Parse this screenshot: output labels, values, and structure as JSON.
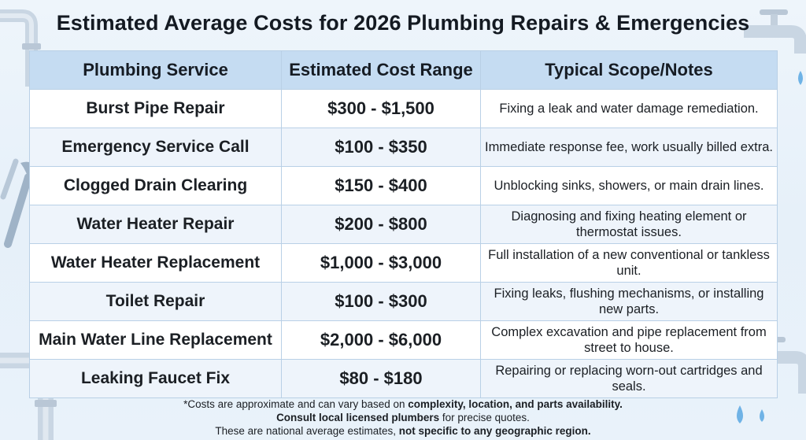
{
  "title": "Estimated Average Costs for 2026 Plumbing Repairs & Emergencies",
  "headers": [
    "Plumbing Service",
    "Estimated Cost Range",
    "Typical Scope/Notes"
  ],
  "rows": [
    {
      "service": "Burst Pipe Repair",
      "cost": "$300 - $1,500",
      "notes": "Fixing a leak and water damage remediation."
    },
    {
      "service": "Emergency Service Call",
      "cost": "$100 - $350",
      "notes": "Immediate response fee, work usually billed extra."
    },
    {
      "service": "Clogged Drain Clearing",
      "cost": "$150 - $400",
      "notes": "Unblocking sinks, showers, or main drain lines."
    },
    {
      "service": "Water Heater Repair",
      "cost": "$200 - $800",
      "notes": "Diagnosing and fixing heating element or thermostat issues."
    },
    {
      "service": "Water Heater Replacement",
      "cost": "$1,000 - $3,000",
      "notes": "Full installation of a new conventional or tankless unit."
    },
    {
      "service": "Toilet Repair",
      "cost": "$100 - $300",
      "notes": "Fixing leaks, flushing mechanisms, or installing new parts."
    },
    {
      "service": "Main Water Line Replacement",
      "cost": "$2,000 - $6,000",
      "notes": "Complex excavation and pipe replacement from street to house."
    },
    {
      "service": "Leaking Faucet Fix",
      "cost": "$80 - $180",
      "notes": "Repairing or replacing worn-out cartridges and seals."
    }
  ],
  "footnote": {
    "line1_pre": "*Costs are approximate and can vary based on ",
    "line1_bold": "complexity, location, and parts availability.",
    "line2_bold": "Consult local licensed plumbers",
    "line2_post": " for precise quotes.",
    "line3_pre": "These are national average estimates, ",
    "line3_bold": "not specific to any geographic region."
  },
  "colors": {
    "header_bg": "#c5dcf2",
    "row_even": "#ffffff",
    "row_odd": "#eef4fb",
    "border": "#b9d0e6",
    "background": "#eaf2fa"
  },
  "decorations": [
    "pipe-icon",
    "faucet-icon",
    "wrench-icon",
    "water-drop-icon"
  ]
}
